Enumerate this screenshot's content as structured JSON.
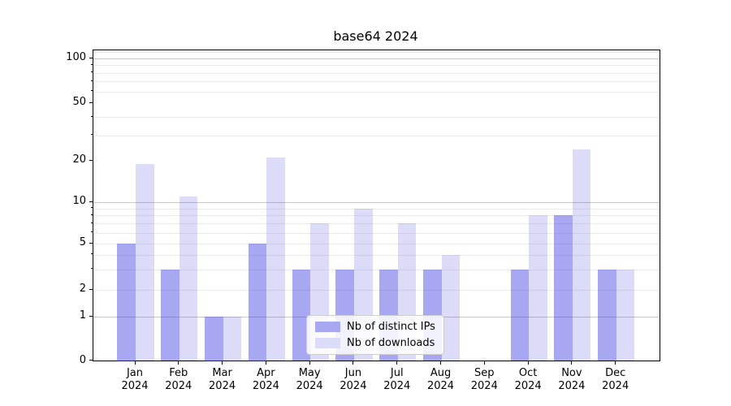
{
  "figure": {
    "title": "base64 2024"
  },
  "axes": {
    "y_tick_labels": [
      "0",
      "1",
      "2",
      "5",
      "10",
      "20",
      "50",
      "100"
    ],
    "x_tick_year_line": "2024"
  },
  "chart_data": {
    "type": "bar",
    "title": "base64 2024",
    "categories": [
      "Jan 2024",
      "Feb 2024",
      "Mar 2024",
      "Apr 2024",
      "May 2024",
      "Jun 2024",
      "Jul 2024",
      "Aug 2024",
      "Sep 2024",
      "Oct 2024",
      "Nov 2024",
      "Dec 2024"
    ],
    "series": [
      {
        "name": "Nb of distinct IPs",
        "color": "#a7a7f2",
        "values": [
          5,
          3,
          1,
          5,
          3,
          3,
          3,
          3,
          0,
          3,
          8,
          3
        ]
      },
      {
        "name": "Nb of downloads",
        "color": "#dcdcf9",
        "values": [
          19,
          11,
          1,
          21,
          7,
          9,
          7,
          4,
          0,
          8,
          24,
          3
        ]
      }
    ],
    "xlabel": "",
    "ylabel": "",
    "y_ticks": [
      0,
      1,
      2,
      5,
      10,
      20,
      50,
      100
    ],
    "ylim": [
      0,
      113
    ],
    "yscale": "asinh (log-like above 1, linear 0-1)",
    "grid": "horizontal major + minor",
    "legend_position": "lower center"
  }
}
